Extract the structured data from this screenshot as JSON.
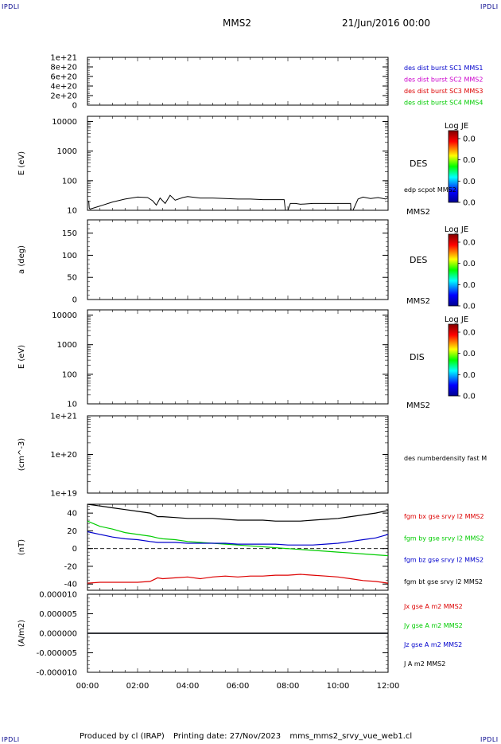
{
  "corners": {
    "top_left": "IPDLI",
    "top_right": "IPDLI",
    "bottom_left": "IPDLI",
    "bottom_right": "IPDLI"
  },
  "header": {
    "spacecraft": "MMS2",
    "date": "21/Jun/2016 00:00"
  },
  "footer": {
    "produced_by": "Produced by cl (IRAP)",
    "printing_date": "Printing date: 27/Nov/2023",
    "filename": "mms_mms2_srvy_vue_web1.cl"
  },
  "colors": {
    "black": "#000000",
    "blue": "#0000cc",
    "magenta": "#cc00cc",
    "red": "#dd0000",
    "green": "#00cc00"
  },
  "chart_data": [
    {
      "type": "line",
      "panel": "dist-burst",
      "xlabel": "",
      "ylabel": "",
      "ylim": [
        0,
        1e+21
      ],
      "yticks": [
        0,
        2e+20,
        4e+20,
        6e+20,
        8e+20,
        1e+21
      ],
      "ytick_labels": [
        "0",
        "2e+20",
        "4e+20",
        "6e+20",
        "8e+20",
        "1e+21"
      ],
      "dashed_line_y": 0,
      "legend": [
        {
          "name": "des dist burst SC1 MMS1",
          "color": "#0000cc"
        },
        {
          "name": "des dist burst SC2 MMS2",
          "color": "#cc00cc"
        },
        {
          "name": "des dist burst SC3 MMS3",
          "color": "#dd0000"
        },
        {
          "name": "des dist burst SC4 MMS4",
          "color": "#00cc00"
        }
      ]
    },
    {
      "type": "heatmap",
      "panel": "des-energy",
      "ylabel": "E (eV)",
      "yscale": "log",
      "ylim": [
        10,
        15000
      ],
      "yticks": [
        10,
        100,
        1000,
        10000
      ],
      "ytick_labels": [
        "10",
        "100",
        "1000",
        "10000"
      ],
      "label": "DES",
      "sublabel": "MMS2",
      "colorbar": {
        "title": "Log JE",
        "ticks": [
          "0.0",
          "0.0",
          "0.0",
          "0.0"
        ]
      },
      "overlay": {
        "name": "edp scpot MMS2",
        "color": "#000000",
        "x_hours": [
          0.05,
          0.07,
          0.1,
          0.5,
          1.0,
          1.5,
          2.0,
          2.4,
          2.6,
          2.75,
          2.9,
          3.1,
          3.3,
          3.5,
          3.8,
          4.0,
          4.5,
          5.0,
          5.5,
          6.0,
          6.5,
          7.0,
          7.5,
          7.85,
          7.9,
          8.0,
          8.1,
          8.3,
          8.5,
          9.0,
          9.5,
          10.0,
          10.5,
          10.52,
          10.6,
          10.8,
          11.0,
          11.3,
          11.6,
          11.9,
          12.0
        ],
        "values": [
          21,
          12,
          11,
          14,
          19,
          24,
          28,
          27,
          21,
          15,
          26,
          17,
          32,
          22,
          27,
          29,
          26,
          26,
          25,
          24,
          24,
          23,
          23,
          23,
          10,
          10,
          17,
          17,
          16,
          17,
          17,
          17,
          17,
          10,
          10,
          24,
          28,
          25,
          27,
          24,
          27
        ]
      }
    },
    {
      "type": "heatmap",
      "panel": "des-pitch",
      "ylabel": "a (deg)",
      "ylim": [
        0,
        180
      ],
      "yticks": [
        0,
        50,
        100,
        150
      ],
      "ytick_labels": [
        "0",
        "50",
        "100",
        "150"
      ],
      "label": "DES",
      "sublabel": "MMS2",
      "colorbar": {
        "title": "Log JE",
        "ticks": [
          "0.0",
          "0.0",
          "0.0",
          "0.0"
        ]
      }
    },
    {
      "type": "heatmap",
      "panel": "dis-energy",
      "ylabel": "E (eV)",
      "yscale": "log",
      "ylim": [
        10,
        15000
      ],
      "yticks": [
        10,
        100,
        1000,
        10000
      ],
      "ytick_labels": [
        "10",
        "100",
        "1000",
        "10000"
      ],
      "label": "DIS",
      "sublabel": "MMS2",
      "colorbar": {
        "title": "Log JE",
        "ticks": [
          "0.0",
          "0.0",
          "0.0",
          "0.0"
        ]
      }
    },
    {
      "type": "line",
      "panel": "density",
      "ylabel": "(cm^-3)",
      "yscale": "log",
      "ylim": [
        1e+19,
        1e+21
      ],
      "yticks": [
        1e+19,
        1e+20,
        1e+21
      ],
      "ytick_labels": [
        "1e+19",
        "1e+20",
        "1e+21"
      ],
      "legend": [
        {
          "name": "des numberdensity fast M",
          "color": "#000000"
        }
      ]
    },
    {
      "type": "line",
      "panel": "fgm",
      "ylabel": "(nT)",
      "ylim": [
        -47,
        50
      ],
      "yticks": [
        -40,
        -20,
        0,
        20,
        40
      ],
      "ytick_labels": [
        "-40",
        "-20",
        "0",
        "20",
        "40"
      ],
      "dashed_line_y": 0,
      "x_hours": [
        0,
        0.5,
        1,
        1.5,
        2,
        2.5,
        2.8,
        3,
        3.5,
        4,
        4.5,
        5,
        5.5,
        6,
        6.5,
        7,
        7.5,
        8,
        8.5,
        9,
        9.5,
        10,
        10.5,
        11,
        11.5,
        12
      ],
      "series": [
        {
          "name": "fgm bx gse srvy l2 MMS2",
          "color": "#dd0000",
          "values": [
            -39,
            -38,
            -38,
            -38,
            -38,
            -37,
            -33,
            -34,
            -33,
            -32,
            -34,
            -32,
            -31,
            -32,
            -31,
            -31,
            -30,
            -30,
            -29,
            -30,
            -31,
            -32,
            -34,
            -36,
            -37,
            -39
          ]
        },
        {
          "name": "fgm by gse srvy l2 MMS2",
          "color": "#00cc00",
          "values": [
            31,
            25,
            22,
            18,
            16,
            14,
            12,
            11,
            10,
            8,
            7,
            6,
            5,
            4,
            3,
            2,
            1,
            0,
            -1,
            -2,
            -3,
            -4,
            -5,
            -6,
            -7,
            -8
          ]
        },
        {
          "name": "fgm bz gse srvy l2 MMS2",
          "color": "#0000cc",
          "values": [
            19,
            16,
            13,
            11,
            10,
            8,
            7,
            7,
            7,
            6,
            6,
            6,
            6,
            5,
            5,
            5,
            5,
            4,
            4,
            4,
            5,
            6,
            8,
            10,
            12,
            16
          ]
        },
        {
          "name": "fgm bt gse srvy l2 MMS2",
          "color": "#000000",
          "values": [
            50,
            48,
            46,
            44,
            42,
            40,
            36,
            36,
            35,
            34,
            34,
            34,
            33,
            32,
            32,
            32,
            31,
            31,
            31,
            32,
            33,
            34,
            36,
            38,
            40,
            43
          ]
        }
      ]
    },
    {
      "type": "line",
      "panel": "current",
      "ylabel": "(A/m2)",
      "ylim": [
        -1e-05,
        1e-05
      ],
      "yticks": [
        -1e-05,
        -5e-06,
        0,
        5e-06,
        1e-05
      ],
      "ytick_labels": [
        "-0.000010",
        "-0.000005",
        "0.000000",
        "0.000005",
        "0.000010"
      ],
      "x_hours": [
        0,
        12
      ],
      "xlabel": "",
      "xticks_hours": [
        0,
        2,
        4,
        6,
        8,
        10,
        12
      ],
      "xtick_labels": [
        "00:00",
        "02:00",
        "04:00",
        "06:00",
        "08:00",
        "10:00",
        "12:00"
      ],
      "series": [
        {
          "name": "Jx gse A m2 MMS2",
          "color": "#dd0000",
          "values": [
            0,
            0
          ]
        },
        {
          "name": "Jy gse A m2 MMS2",
          "color": "#00cc00",
          "values": [
            0,
            0
          ]
        },
        {
          "name": "Jz gse A m2 MMS2",
          "color": "#0000cc",
          "values": [
            0,
            0
          ]
        },
        {
          "name": "J A m2 MMS2",
          "color": "#000000",
          "values": [
            0,
            0
          ]
        }
      ]
    }
  ]
}
